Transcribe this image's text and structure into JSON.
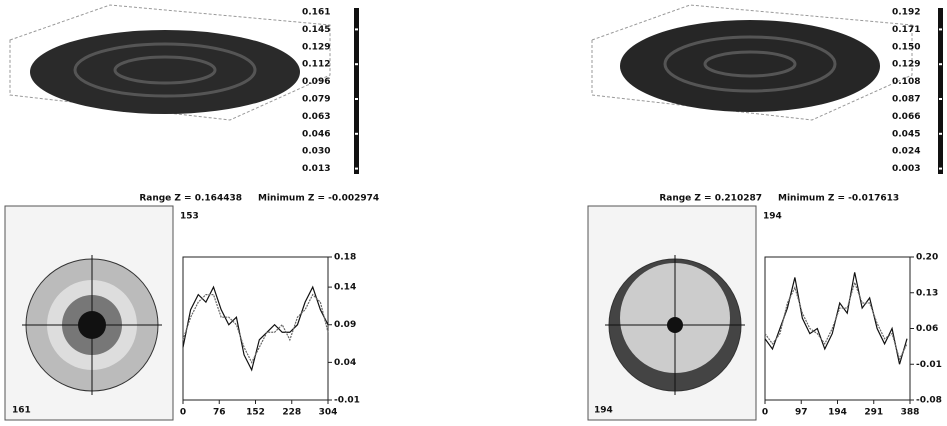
{
  "panels": [
    {
      "colorbar_labels": [
        "0.161",
        "0.145",
        "0.129",
        "0.112",
        "0.096",
        "0.079",
        "0.063",
        "0.046",
        "0.030",
        "0.013"
      ],
      "range_label": "Range Z = 0.164438",
      "minimum_label": "Minimum Z = -0.002974",
      "corner_top": "153",
      "corner_bottom": "161"
    },
    {
      "colorbar_labels": [
        "0.192",
        "0.171",
        "0.150",
        "0.129",
        "0.108",
        "0.087",
        "0.066",
        "0.045",
        "0.024",
        "0.003"
      ],
      "range_label": "Range Z = 0.210287",
      "minimum_label": "Minimum Z = -0.017613",
      "corner_top": "194",
      "corner_bottom": "194"
    }
  ],
  "chart_data": [
    {
      "type": "line",
      "x": [
        0,
        16,
        32,
        48,
        64,
        80,
        96,
        112,
        128,
        144,
        160,
        176,
        192,
        208,
        224,
        240,
        256,
        272,
        288,
        304
      ],
      "series": [
        {
          "color": "#111111",
          "values": [
            0.06,
            0.11,
            0.13,
            0.12,
            0.14,
            0.11,
            0.09,
            0.1,
            0.05,
            0.03,
            0.07,
            0.08,
            0.09,
            0.08,
            0.08,
            0.09,
            0.12,
            0.14,
            0.11,
            0.09
          ]
        },
        {
          "color": "#666666",
          "values": [
            0.07,
            0.1,
            0.12,
            0.13,
            0.13,
            0.1,
            0.1,
            0.09,
            0.06,
            0.04,
            0.06,
            0.08,
            0.08,
            0.09,
            0.07,
            0.1,
            0.11,
            0.13,
            0.12,
            0.08
          ]
        }
      ],
      "xlim": [
        0,
        304
      ],
      "xticks": [
        0,
        76,
        152,
        228,
        304
      ],
      "ylim": [
        -0.01,
        0.18
      ],
      "yticks": [
        -0.01,
        0.04,
        0.09,
        0.14,
        0.18
      ]
    },
    {
      "type": "line",
      "x": [
        0,
        20,
        40,
        60,
        80,
        100,
        120,
        140,
        160,
        180,
        200,
        220,
        240,
        260,
        280,
        300,
        320,
        340,
        360,
        380
      ],
      "series": [
        {
          "color": "#111111",
          "values": [
            0.04,
            0.02,
            0.06,
            0.1,
            0.16,
            0.08,
            0.05,
            0.06,
            0.02,
            0.05,
            0.11,
            0.09,
            0.17,
            0.1,
            0.12,
            0.06,
            0.03,
            0.06,
            -0.01,
            0.04
          ]
        },
        {
          "color": "#666666",
          "values": [
            0.05,
            0.03,
            0.05,
            0.11,
            0.14,
            0.09,
            0.06,
            0.05,
            0.03,
            0.06,
            0.1,
            0.1,
            0.15,
            0.11,
            0.11,
            0.07,
            0.04,
            0.05,
            0.0,
            0.03
          ]
        }
      ],
      "xlim": [
        0,
        388
      ],
      "xticks": [
        0,
        97,
        194,
        291,
        388
      ],
      "ylim": [
        -0.08,
        0.2
      ],
      "yticks": [
        -0.08,
        -0.01,
        0.06,
        0.13,
        {
          "value": 0.2,
          "label": "0.20"
        }
      ]
    }
  ]
}
